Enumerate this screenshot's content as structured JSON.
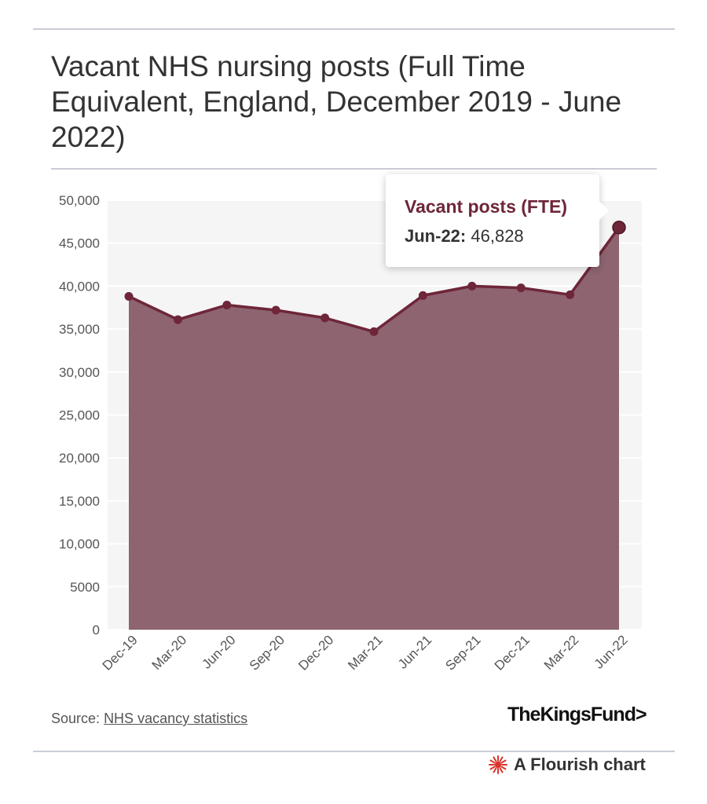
{
  "title": "Vacant NHS nursing posts (Full Time Equivalent, England, December 2019 - June 2022)",
  "tooltip": {
    "title": "Vacant posts (FTE)",
    "label": "Jun-22:",
    "value": "46,828"
  },
  "source": {
    "prefix": "Source:",
    "link_text": "NHS vacancy statistics"
  },
  "brand": "TheKingsFund>",
  "footer": {
    "text": "A Flourish chart",
    "icon": "flourish-star-icon"
  },
  "colors": {
    "series": "#6e2638",
    "area": "#8d6470",
    "plot_bg": "#f5f5f5",
    "grid": "#ffffff",
    "flourish": "#d9342b"
  },
  "chart_data": {
    "type": "area",
    "categories": [
      "Dec-19",
      "Mar-20",
      "Jun-20",
      "Sep-20",
      "Dec-20",
      "Mar-21",
      "Jun-21",
      "Sep-21",
      "Dec-21",
      "Mar-22",
      "Jun-22"
    ],
    "series": [
      {
        "name": "Vacant posts (FTE)",
        "values": [
          38800,
          36100,
          37800,
          37200,
          36300,
          34700,
          38900,
          40000,
          39800,
          39000,
          46828
        ]
      }
    ],
    "ylim": [
      0,
      50000
    ],
    "yticks": [
      0,
      5000,
      10000,
      15000,
      20000,
      25000,
      30000,
      35000,
      40000,
      45000,
      50000
    ],
    "ytick_labels": [
      "0",
      "5000",
      "10,000",
      "15,000",
      "20,000",
      "25,000",
      "30,000",
      "35,000",
      "40,000",
      "45,000",
      "50,000"
    ],
    "grid": true,
    "highlight_index": 10
  }
}
